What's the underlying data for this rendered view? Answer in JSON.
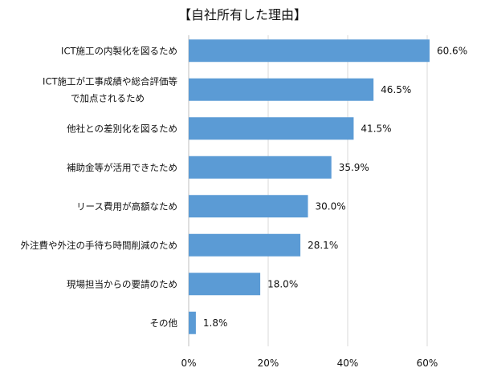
{
  "chart_data": {
    "type": "bar",
    "orientation": "horizontal",
    "title": "【自社所有した理由】",
    "categories": [
      [
        "ICT施工の内製化を図るため"
      ],
      [
        "ICT施工が工事成績や総合評価等",
        "で加点されるため"
      ],
      [
        "他社との差別化を図るため"
      ],
      [
        "補助金等が活用できたため"
      ],
      [
        "リース費用が高額なため"
      ],
      [
        "外注費や外注の手待ち時間削減のため"
      ],
      [
        "現場担当からの要請のため"
      ],
      [
        "その他"
      ]
    ],
    "values": [
      60.6,
      46.5,
      41.5,
      35.9,
      30.0,
      28.1,
      18.0,
      1.8
    ],
    "value_labels": [
      "60.6%",
      "46.5%",
      "41.5%",
      "35.9%",
      "30.0%",
      "28.1%",
      "18.0%",
      "1.8%"
    ],
    "xlim": [
      0,
      60
    ],
    "ticks": [
      "0%",
      "20%",
      "40%",
      "60%"
    ],
    "tick_values": [
      0,
      20,
      40,
      60
    ],
    "grid": true,
    "bar_color": "#5b9bd5",
    "grid_color": "#d9d9d9"
  }
}
